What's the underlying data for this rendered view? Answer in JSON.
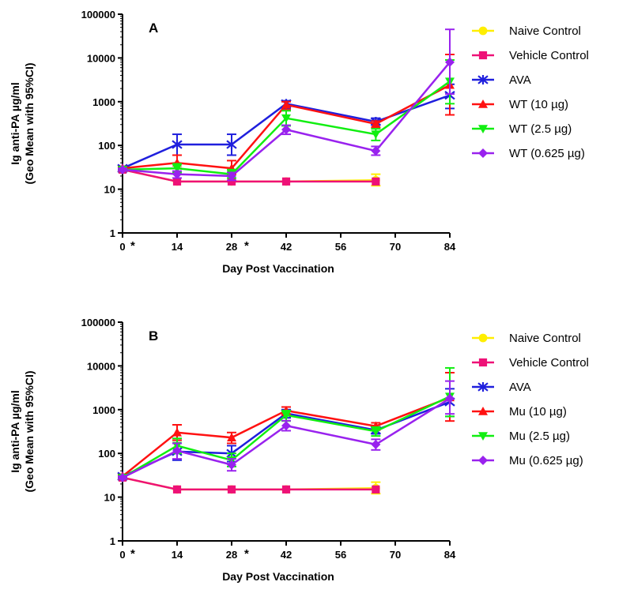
{
  "chart_data": [
    {
      "type": "line",
      "panel_label": "A",
      "xlabel": "Day Post Vaccination",
      "ylabel": "Ig anti-PA µg/ml",
      "ylabel2": "(Geo Mean with 95%CI)",
      "y_scale": "log",
      "ylim": [
        1,
        100000
      ],
      "xlim": [
        0,
        84
      ],
      "x_ticks": [
        0,
        14,
        28,
        42,
        56,
        70,
        84
      ],
      "x_tick_labels": [
        "0",
        "14",
        "28",
        "42",
        "56",
        "70",
        "84"
      ],
      "y_ticks": [
        1,
        10,
        100,
        1000,
        10000,
        100000
      ],
      "y_tick_labels": [
        "1",
        "10",
        "100",
        "1000",
        "10000",
        "100000"
      ],
      "star_marks": [
        "*",
        "*"
      ],
      "legend_position": "right",
      "series": [
        {
          "name": "Naive Control",
          "color": "#ffee00",
          "marker": "circle",
          "x": [
            0,
            14,
            28,
            42,
            65
          ],
          "y": [
            28,
            15,
            15,
            15,
            16
          ],
          "err_low": [
            26,
            15,
            15,
            15,
            12
          ],
          "err_high": [
            30,
            15,
            15,
            15,
            22
          ]
        },
        {
          "name": "Vehicle Control",
          "color": "#ee1177",
          "marker": "square",
          "x": [
            0,
            14,
            28,
            42,
            65
          ],
          "y": [
            28,
            15,
            15,
            15,
            15
          ],
          "err_low": [
            26,
            15,
            15,
            15,
            15
          ],
          "err_high": [
            30,
            15,
            15,
            15,
            15
          ]
        },
        {
          "name": "AVA",
          "color": "#1f1fdd",
          "marker": "star",
          "x": [
            0,
            14,
            28,
            42,
            65,
            84
          ],
          "y": [
            30,
            105,
            105,
            900,
            350,
            1400
          ],
          "err_low": [
            28,
            60,
            60,
            700,
            300,
            700
          ],
          "err_high": [
            32,
            180,
            180,
            1050,
            420,
            2500
          ]
        },
        {
          "name": "WT (10 µg)",
          "color": "#ff1111",
          "marker": "triangle-up",
          "x": [
            0,
            14,
            28,
            42,
            65,
            84
          ],
          "y": [
            30,
            40,
            30,
            850,
            310,
            2400
          ],
          "err_low": [
            27,
            30,
            22,
            650,
            260,
            500
          ],
          "err_high": [
            33,
            60,
            45,
            1000,
            360,
            12000
          ]
        },
        {
          "name": "WT (2.5 µg)",
          "color": "#11ee11",
          "marker": "triangle-down",
          "x": [
            0,
            14,
            28,
            42,
            65,
            84
          ],
          "y": [
            28,
            30,
            22,
            420,
            180,
            2900
          ],
          "err_low": [
            26,
            24,
            18,
            280,
            130,
            900
          ],
          "err_high": [
            30,
            38,
            28,
            620,
            240,
            9000
          ]
        },
        {
          "name": "WT (0.625 µg)",
          "color": "#9922ee",
          "marker": "diamond",
          "x": [
            0,
            14,
            28,
            42,
            65,
            84
          ],
          "y": [
            28,
            22,
            20,
            230,
            75,
            8000
          ],
          "err_low": [
            26,
            18,
            16,
            180,
            60,
            1500
          ],
          "err_high": [
            30,
            26,
            24,
            290,
            95,
            45000
          ]
        }
      ]
    },
    {
      "type": "line",
      "panel_label": "B",
      "xlabel": "Day Post Vaccination",
      "ylabel": "Ig anti-PA µg/ml",
      "ylabel2": "(Geo Mean with 95%CI)",
      "y_scale": "log",
      "ylim": [
        1,
        100000
      ],
      "xlim": [
        0,
        84
      ],
      "x_ticks": [
        0,
        14,
        28,
        42,
        56,
        70,
        84
      ],
      "x_tick_labels": [
        "0",
        "14",
        "28",
        "42",
        "56",
        "70",
        "84"
      ],
      "y_ticks": [
        1,
        10,
        100,
        1000,
        10000,
        100000
      ],
      "y_tick_labels": [
        "1",
        "10",
        "100",
        "1000",
        "10000",
        "100000"
      ],
      "star_marks": [
        "*",
        "*"
      ],
      "legend_position": "right",
      "series": [
        {
          "name": "Naive Control",
          "color": "#ffee00",
          "marker": "circle",
          "x": [
            0,
            14,
            28,
            42,
            65
          ],
          "y": [
            28,
            15,
            15,
            15,
            16
          ],
          "err_low": [
            26,
            15,
            15,
            15,
            12
          ],
          "err_high": [
            30,
            15,
            15,
            15,
            22
          ]
        },
        {
          "name": "Vehicle Control",
          "color": "#ee1177",
          "marker": "square",
          "x": [
            0,
            14,
            28,
            42,
            65
          ],
          "y": [
            28,
            15,
            15,
            15,
            15
          ],
          "err_low": [
            26,
            15,
            15,
            15,
            15
          ],
          "err_high": [
            30,
            15,
            15,
            15,
            15
          ]
        },
        {
          "name": "AVA",
          "color": "#1f1fdd",
          "marker": "star",
          "x": [
            0,
            14,
            28,
            42,
            65,
            84
          ],
          "y": [
            30,
            110,
            100,
            820,
            340,
            1500
          ],
          "err_low": [
            28,
            70,
            65,
            650,
            280,
            700
          ],
          "err_high": [
            32,
            170,
            150,
            1000,
            400,
            3000
          ]
        },
        {
          "name": "Mu (10 µg)",
          "color": "#ff1111",
          "marker": "triangle-up",
          "x": [
            0,
            14,
            28,
            42,
            65,
            84
          ],
          "y": [
            30,
            300,
            230,
            950,
            420,
            1900
          ],
          "err_low": [
            27,
            200,
            170,
            750,
            340,
            550
          ],
          "err_high": [
            33,
            450,
            300,
            1150,
            500,
            7000
          ]
        },
        {
          "name": "Mu (2.5 µg)",
          "color": "#11ee11",
          "marker": "triangle-down",
          "x": [
            0,
            14,
            28,
            42,
            65,
            84
          ],
          "y": [
            28,
            150,
            70,
            750,
            320,
            2000
          ],
          "err_low": [
            26,
            100,
            50,
            550,
            250,
            700
          ],
          "err_high": [
            30,
            220,
            100,
            950,
            400,
            9000
          ]
        },
        {
          "name": "Mu (0.625 µg)",
          "color": "#9922ee",
          "marker": "diamond",
          "x": [
            0,
            14,
            28,
            42,
            65,
            84
          ],
          "y": [
            28,
            115,
            55,
            430,
            160,
            1800
          ],
          "err_low": [
            26,
            75,
            40,
            330,
            120,
            800
          ],
          "err_high": [
            30,
            170,
            75,
            560,
            210,
            4500
          ]
        }
      ]
    }
  ]
}
